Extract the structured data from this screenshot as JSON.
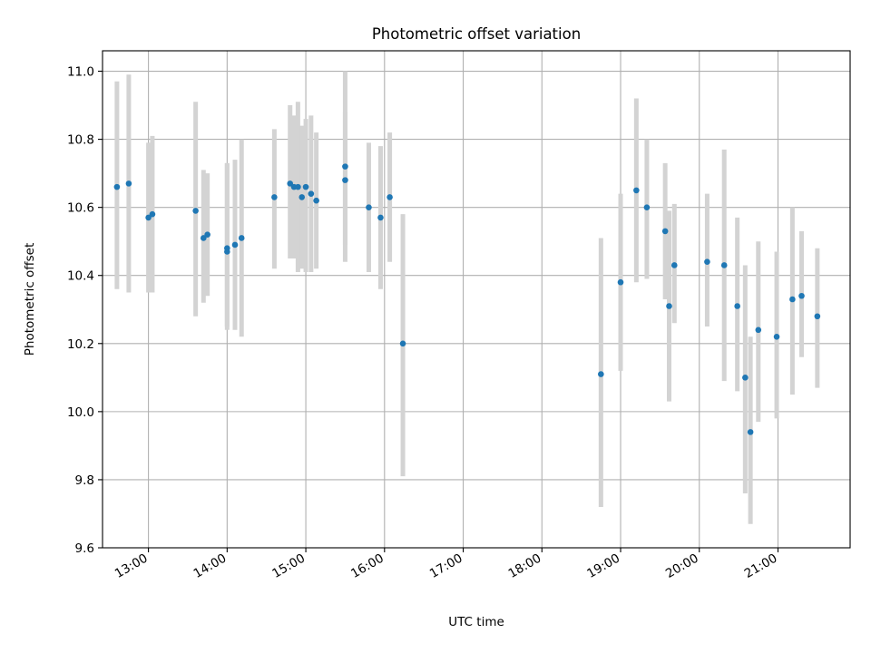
{
  "chart_data": {
    "type": "scatter",
    "title": "Photometric offset variation",
    "xlabel": "UTC time",
    "ylabel": "Photometric offset",
    "x_type": "time",
    "xlim": [
      "12:25",
      "21:55"
    ],
    "ylim": [
      9.6,
      11.06
    ],
    "x_ticks": [
      "13:00",
      "14:00",
      "15:00",
      "16:00",
      "17:00",
      "18:00",
      "19:00",
      "20:00",
      "21:00"
    ],
    "y_ticks": [
      "9.6",
      "9.8",
      "10.0",
      "10.2",
      "10.4",
      "10.6",
      "10.8",
      "11.0"
    ],
    "grid": true,
    "colors": {
      "points": "#1f77b4",
      "error_bars": "#d3d3d3"
    },
    "series": [
      {
        "x": [
          "12:36",
          "12:45",
          "13:00",
          "13:03",
          "13:36",
          "13:42",
          "13:45",
          "14:00",
          "14:00",
          "14:06",
          "14:11",
          "14:36",
          "14:48",
          "14:51",
          "14:54",
          "14:57",
          "15:00",
          "15:04",
          "15:08",
          "15:30",
          "15:30",
          "15:48",
          "15:57",
          "16:04",
          "16:14",
          "18:45",
          "19:00",
          "19:12",
          "19:20",
          "19:34",
          "19:37",
          "19:41",
          "20:06",
          "20:19",
          "20:29",
          "20:35",
          "20:39",
          "20:45",
          "20:59",
          "21:11",
          "21:18",
          "21:30"
        ],
        "y": [
          10.66,
          10.67,
          10.57,
          10.58,
          10.59,
          10.51,
          10.52,
          10.48,
          10.47,
          10.49,
          10.51,
          10.63,
          10.67,
          10.66,
          10.66,
          10.63,
          10.66,
          10.64,
          10.62,
          10.72,
          10.68,
          10.6,
          10.57,
          10.63,
          10.2,
          10.11,
          10.38,
          10.65,
          10.6,
          10.53,
          10.31,
          10.43,
          10.44,
          10.43,
          10.31,
          10.1,
          9.94,
          10.24,
          10.22,
          10.33,
          10.34,
          10.28
        ],
        "err_low": [
          10.36,
          10.35,
          10.35,
          10.35,
          10.28,
          10.32,
          10.34,
          10.24,
          10.25,
          10.24,
          10.22,
          10.42,
          10.45,
          10.45,
          10.41,
          10.42,
          10.41,
          10.41,
          10.42,
          10.44,
          10.49,
          10.41,
          10.36,
          10.44,
          9.81,
          9.72,
          10.12,
          10.38,
          10.39,
          10.33,
          10.03,
          10.26,
          10.25,
          10.09,
          10.06,
          9.76,
          9.67,
          9.97,
          9.98,
          10.05,
          10.16,
          10.07
        ],
        "err_high": [
          10.97,
          10.99,
          10.79,
          10.81,
          10.91,
          10.71,
          10.7,
          10.73,
          10.73,
          10.74,
          10.8,
          10.83,
          10.9,
          10.87,
          10.91,
          10.84,
          10.86,
          10.87,
          10.82,
          11.0,
          10.88,
          10.79,
          10.78,
          10.82,
          10.58,
          10.51,
          10.64,
          10.92,
          10.8,
          10.73,
          10.59,
          10.61,
          10.64,
          10.77,
          10.57,
          10.43,
          10.22,
          10.5,
          10.47,
          10.6,
          10.53,
          10.48
        ]
      }
    ]
  }
}
